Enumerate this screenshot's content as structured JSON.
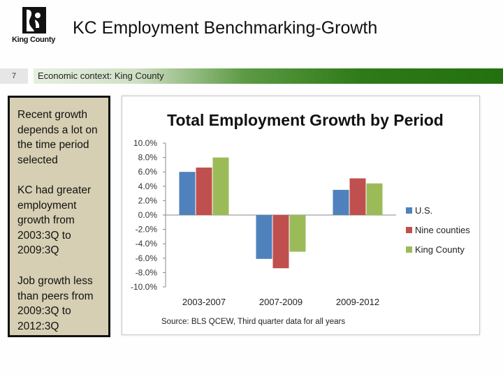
{
  "logo": {
    "text": "King County",
    "icon": "king-county-logo-icon"
  },
  "header": {
    "title": "KC Employment Benchmarking-Growth"
  },
  "section": {
    "slide_number": "7",
    "context_label": "Economic context: King County"
  },
  "sidebar": {
    "paragraphs": [
      "Recent growth depends a lot on the time period selected",
      "KC had greater employment growth from 2003:3Q to 2009:3Q",
      "Job growth less than peers from 2009:3Q to 2012:3Q"
    ]
  },
  "chart_data": {
    "type": "bar",
    "title": "Total Employment Growth by Period",
    "categories": [
      "2003-2007",
      "2007-2009",
      "2009-2012"
    ],
    "series": [
      {
        "name": "U.S.",
        "color": "#4f81bd",
        "values": [
          6.0,
          -6.1,
          3.5
        ]
      },
      {
        "name": "Nine counties",
        "color": "#c0504d",
        "values": [
          6.6,
          -7.4,
          5.1
        ]
      },
      {
        "name": "King County",
        "color": "#9bbb59",
        "values": [
          8.0,
          -5.1,
          4.4
        ]
      }
    ],
    "ylim": [
      -10,
      10
    ],
    "yticks": [
      "10.0%",
      "8.0%",
      "6.0%",
      "4.0%",
      "2.0%",
      "0.0%",
      "-2.0%",
      "-4.0%",
      "-6.0%",
      "-8.0%",
      "-10.0%"
    ],
    "legend_position": "right",
    "source": "Source: BLS QCEW, Third quarter data for all years",
    "grid": false
  }
}
